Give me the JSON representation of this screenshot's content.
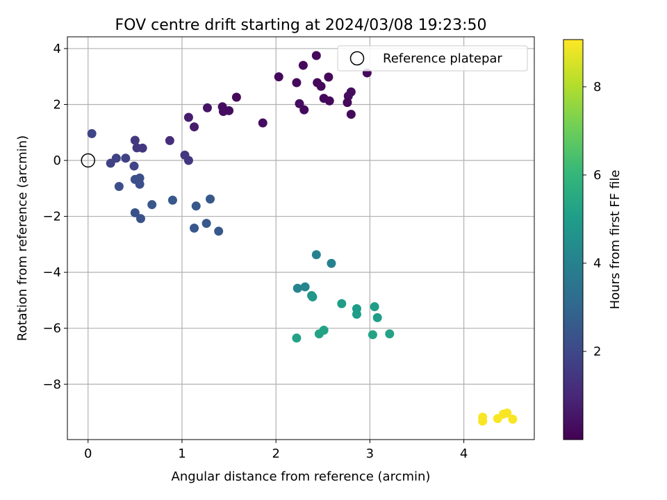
{
  "chart_data": {
    "type": "scatter",
    "title": "FOV centre drift starting at 2024/03/08 19:23:50",
    "xlabel": "Angular distance from reference (arcmin)",
    "ylabel": "Rotation from reference (arcmin)",
    "xlim": [
      -0.22,
      4.75
    ],
    "ylim": [
      -9.98,
      4.42
    ],
    "xticks": [
      0,
      1,
      2,
      3,
      4
    ],
    "yticks": [
      -8,
      -6,
      -4,
      -2,
      0,
      2,
      4
    ],
    "xtick_labels": [
      "0",
      "1",
      "2",
      "3",
      "4"
    ],
    "ytick_labels": [
      "−8",
      "−6",
      "−4",
      "−2",
      "0",
      "2",
      "4"
    ],
    "grid": true,
    "legend": {
      "position": "top-right",
      "entries": [
        {
          "label": "Reference platepar",
          "marker": "open-circle",
          "x": 0,
          "y": 0
        }
      ]
    },
    "colorbar": {
      "label": "Hours from first FF file",
      "colormap": "viridis",
      "range": [
        0.0,
        9.07
      ],
      "ticks": [
        2,
        4,
        6,
        8
      ],
      "tick_labels": [
        "2",
        "4",
        "6",
        "8"
      ]
    },
    "points": [
      {
        "x": 2.43,
        "y": 3.75,
        "hours": 0.2
      },
      {
        "x": 2.29,
        "y": 3.4,
        "hours": 0.2
      },
      {
        "x": 2.97,
        "y": 3.13,
        "hours": 0.2
      },
      {
        "x": 2.03,
        "y": 2.99,
        "hours": 0.2
      },
      {
        "x": 2.56,
        "y": 2.98,
        "hours": 0.2
      },
      {
        "x": 2.22,
        "y": 2.78,
        "hours": 0.2
      },
      {
        "x": 2.44,
        "y": 2.78,
        "hours": 0.2
      },
      {
        "x": 2.48,
        "y": 2.65,
        "hours": 0.2
      },
      {
        "x": 2.8,
        "y": 2.45,
        "hours": 0.3
      },
      {
        "x": 2.77,
        "y": 2.3,
        "hours": 0.3
      },
      {
        "x": 1.58,
        "y": 2.26,
        "hours": 0.2
      },
      {
        "x": 2.51,
        "y": 2.22,
        "hours": 0.2
      },
      {
        "x": 2.57,
        "y": 2.13,
        "hours": 0.2
      },
      {
        "x": 2.76,
        "y": 2.07,
        "hours": 0.2
      },
      {
        "x": 2.25,
        "y": 2.03,
        "hours": 0.3
      },
      {
        "x": 1.43,
        "y": 1.92,
        "hours": 0.3
      },
      {
        "x": 1.27,
        "y": 1.88,
        "hours": 0.5
      },
      {
        "x": 2.3,
        "y": 1.81,
        "hours": 0.2
      },
      {
        "x": 1.5,
        "y": 1.78,
        "hours": 0.3
      },
      {
        "x": 1.44,
        "y": 1.75,
        "hours": 0.3
      },
      {
        "x": 2.8,
        "y": 1.65,
        "hours": 0.2
      },
      {
        "x": 1.07,
        "y": 1.54,
        "hours": 0.7
      },
      {
        "x": 1.86,
        "y": 1.34,
        "hours": 0.3
      },
      {
        "x": 1.13,
        "y": 1.2,
        "hours": 0.7
      },
      {
        "x": 0.04,
        "y": 0.96,
        "hours": 1.9
      },
      {
        "x": 0.87,
        "y": 0.71,
        "hours": 1.2
      },
      {
        "x": 0.5,
        "y": 0.72,
        "hours": 1.5
      },
      {
        "x": 0.52,
        "y": 0.45,
        "hours": 1.5
      },
      {
        "x": 0.58,
        "y": 0.44,
        "hours": 1.5
      },
      {
        "x": 1.03,
        "y": 0.19,
        "hours": 1.5
      },
      {
        "x": 0.3,
        "y": 0.08,
        "hours": 1.8
      },
      {
        "x": 0.4,
        "y": 0.08,
        "hours": 1.8
      },
      {
        "x": 1.07,
        "y": 0.0,
        "hours": 1.5
      },
      {
        "x": 0.24,
        "y": -0.1,
        "hours": 1.8
      },
      {
        "x": 0.49,
        "y": -0.2,
        "hours": 1.9
      },
      {
        "x": 0.5,
        "y": -0.68,
        "hours": 2.2
      },
      {
        "x": 0.55,
        "y": -0.63,
        "hours": 2.2
      },
      {
        "x": 0.55,
        "y": -0.85,
        "hours": 2.2
      },
      {
        "x": 0.33,
        "y": -0.93,
        "hours": 2.2
      },
      {
        "x": 0.68,
        "y": -1.58,
        "hours": 2.5
      },
      {
        "x": 0.9,
        "y": -1.42,
        "hours": 2.5
      },
      {
        "x": 1.3,
        "y": -1.38,
        "hours": 2.5
      },
      {
        "x": 1.15,
        "y": -1.63,
        "hours": 2.5
      },
      {
        "x": 0.5,
        "y": -1.87,
        "hours": 2.3
      },
      {
        "x": 0.56,
        "y": -2.08,
        "hours": 2.3
      },
      {
        "x": 1.26,
        "y": -2.25,
        "hours": 2.5
      },
      {
        "x": 1.13,
        "y": -2.42,
        "hours": 2.5
      },
      {
        "x": 1.39,
        "y": -2.53,
        "hours": 2.5
      },
      {
        "x": 2.43,
        "y": -3.37,
        "hours": 4.0
      },
      {
        "x": 2.59,
        "y": -3.68,
        "hours": 4.0
      },
      {
        "x": 2.23,
        "y": -4.57,
        "hours": 4.1
      },
      {
        "x": 2.31,
        "y": -4.52,
        "hours": 4.1
      },
      {
        "x": 2.38,
        "y": -4.83,
        "hours": 4.8
      },
      {
        "x": 2.39,
        "y": -4.88,
        "hours": 4.8
      },
      {
        "x": 2.7,
        "y": -5.12,
        "hours": 5.0
      },
      {
        "x": 3.05,
        "y": -5.23,
        "hours": 5.0
      },
      {
        "x": 2.86,
        "y": -5.3,
        "hours": 5.0
      },
      {
        "x": 2.86,
        "y": -5.5,
        "hours": 5.0
      },
      {
        "x": 3.08,
        "y": -5.62,
        "hours": 5.0
      },
      {
        "x": 2.51,
        "y": -6.07,
        "hours": 5.2
      },
      {
        "x": 2.46,
        "y": -6.2,
        "hours": 5.2
      },
      {
        "x": 3.21,
        "y": -6.2,
        "hours": 5.2
      },
      {
        "x": 3.03,
        "y": -6.23,
        "hours": 5.2
      },
      {
        "x": 2.22,
        "y": -6.35,
        "hours": 5.2
      },
      {
        "x": 4.46,
        "y": -9.03,
        "hours": 9.0
      },
      {
        "x": 4.42,
        "y": -9.07,
        "hours": 9.0
      },
      {
        "x": 4.2,
        "y": -9.18,
        "hours": 9.0
      },
      {
        "x": 4.36,
        "y": -9.23,
        "hours": 9.0
      },
      {
        "x": 4.52,
        "y": -9.25,
        "hours": 9.0
      },
      {
        "x": 4.2,
        "y": -9.32,
        "hours": 9.0
      }
    ]
  }
}
